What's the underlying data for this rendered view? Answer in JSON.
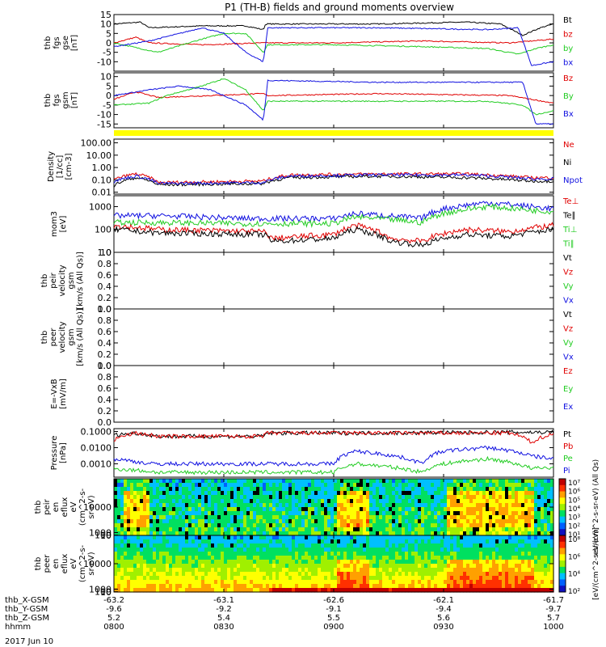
{
  "title": "P1 (TH-B) fields and ground moments overview",
  "date_label": "2017 Jun 10",
  "colors": {
    "black": "#000000",
    "red": "#e00000",
    "green": "#22cc22",
    "blue": "#1010e0",
    "yellow": "#ffff00"
  },
  "chart_data": [
    {
      "type": "line",
      "id": "fgs_gse",
      "ylabel": [
        "thb",
        "fgs",
        "gse",
        "[nT]"
      ],
      "ylim": [
        -15,
        15
      ],
      "ticks": [
        15,
        10,
        5,
        0,
        -5,
        -10
      ],
      "legend": [
        {
          "text": "Bt",
          "color": "black"
        },
        {
          "text": "bz",
          "color": "red"
        },
        {
          "text": "by",
          "color": "green"
        },
        {
          "text": "bx",
          "color": "blue"
        }
      ],
      "series": [
        {
          "color": "black",
          "x": [
            0,
            0.06,
            0.08,
            0.2,
            0.3,
            0.34,
            0.345,
            0.6,
            0.8,
            0.88,
            0.93,
            0.97,
            1
          ],
          "y": [
            10,
            11,
            8,
            9,
            9,
            7,
            10,
            10,
            11,
            10,
            4,
            8,
            10
          ]
        },
        {
          "color": "red",
          "x": [
            0,
            0.05,
            0.08,
            0.2,
            0.34,
            0.5,
            0.7,
            0.9,
            1
          ],
          "y": [
            0,
            3,
            0,
            -1,
            0,
            0,
            1,
            0,
            2
          ]
        },
        {
          "color": "green",
          "x": [
            0,
            0.06,
            0.1,
            0.2,
            0.25,
            0.3,
            0.34,
            0.35,
            0.5,
            0.7,
            0.85,
            0.92,
            0.96,
            1
          ],
          "y": [
            0,
            -3,
            -5,
            2,
            5,
            5,
            -5,
            -1,
            -1,
            -2,
            -3,
            -6,
            -3,
            -1
          ]
        },
        {
          "color": "blue",
          "x": [
            0,
            0.08,
            0.15,
            0.2,
            0.25,
            0.3,
            0.34,
            0.35,
            0.6,
            0.85,
            0.92,
            0.95,
            1
          ],
          "y": [
            -2,
            1,
            5,
            8,
            5,
            -5,
            -10,
            8,
            8,
            7,
            8,
            -12,
            -10
          ]
        }
      ]
    },
    {
      "type": "line",
      "id": "fgs_gsm",
      "ylabel": [
        "thb",
        "fgs",
        "gsm",
        "[nT]"
      ],
      "ylim": [
        -17,
        12
      ],
      "ticks": [
        10,
        5,
        0,
        -5,
        -10,
        -15
      ],
      "legend": [
        {
          "text": "Bz",
          "color": "red"
        },
        {
          "text": "By",
          "color": "green"
        },
        {
          "text": "Bx",
          "color": "blue"
        }
      ],
      "series": [
        {
          "color": "red",
          "x": [
            0,
            0.05,
            0.1,
            0.34,
            0.35,
            0.6,
            0.9,
            1
          ],
          "y": [
            -2,
            2,
            -1,
            1,
            0,
            1,
            0,
            -4
          ]
        },
        {
          "color": "green",
          "x": [
            0,
            0.08,
            0.12,
            0.2,
            0.25,
            0.3,
            0.34,
            0.35,
            0.6,
            0.85,
            0.93,
            0.96,
            1
          ],
          "y": [
            -5,
            -4,
            0,
            5,
            9,
            3,
            -8,
            -3,
            -3,
            -3,
            -5,
            -10,
            -8
          ]
        },
        {
          "color": "blue",
          "x": [
            0,
            0.08,
            0.15,
            0.22,
            0.3,
            0.34,
            0.35,
            0.6,
            0.85,
            0.93,
            0.96,
            1
          ],
          "y": [
            0,
            3,
            5,
            3,
            -5,
            -13,
            8,
            7,
            7,
            7,
            -15,
            -15
          ]
        }
      ]
    },
    {
      "type": "line",
      "id": "density",
      "ylabel": [
        "Density",
        "[1/cc]",
        "[cm-3]"
      ],
      "log": true,
      "ylim": [
        0.007,
        200
      ],
      "ticklabels": [
        {
          "v": 100,
          "t": "100.00"
        },
        {
          "v": 10,
          "t": "10.00"
        },
        {
          "v": 1,
          "t": "1.00"
        },
        {
          "v": 0.1,
          "t": "0.10"
        },
        {
          "v": 0.01,
          "t": "0.01"
        }
      ],
      "legend": [
        {
          "text": "Ne",
          "color": "red"
        },
        {
          "text": "Ni",
          "color": "black"
        },
        {
          "text": "Npot",
          "color": "blue"
        }
      ],
      "series": [
        {
          "color": "red",
          "x": [
            0,
            0.05,
            0.1,
            0.34,
            0.4,
            0.6,
            0.8,
            0.95,
            1
          ],
          "y": [
            0.1,
            0.3,
            0.06,
            0.08,
            0.25,
            0.3,
            0.3,
            0.15,
            0.15
          ]
        },
        {
          "color": "black",
          "x": [
            0,
            0.05,
            0.1,
            0.34,
            0.4,
            0.6,
            0.8,
            0.95,
            1
          ],
          "y": [
            0.03,
            0.15,
            0.04,
            0.05,
            0.15,
            0.2,
            0.15,
            0.08,
            0.08
          ]
        },
        {
          "color": "blue",
          "x": [
            0,
            0.05,
            0.1,
            0.34,
            0.4,
            0.6,
            0.8,
            0.95,
            1
          ],
          "y": [
            0.07,
            0.2,
            0.05,
            0.06,
            0.2,
            0.25,
            0.25,
            0.12,
            0.12
          ]
        }
      ]
    },
    {
      "type": "line",
      "id": "moms",
      "ylabel": [
        "mom3",
        "[eV]"
      ],
      "log": true,
      "ylim": [
        10,
        3000
      ],
      "ticklabels": [
        {
          "v": 1000,
          "t": "1000"
        },
        {
          "v": 100,
          "t": "100"
        },
        {
          "v": 10,
          "t": "10"
        }
      ],
      "legend": [
        {
          "text": "Te⊥",
          "color": "red"
        },
        {
          "text": "Te∥",
          "color": "black"
        },
        {
          "text": "Ti⊥",
          "color": "green"
        },
        {
          "text": "Ti∥",
          "color": "green"
        }
      ],
      "series": [
        {
          "color": "blue",
          "x": [
            0,
            0.1,
            0.3,
            0.5,
            0.55,
            0.7,
            0.75,
            0.85,
            0.95,
            1
          ],
          "y": [
            400,
            400,
            300,
            300,
            500,
            300,
            800,
            1500,
            1000,
            800
          ]
        },
        {
          "color": "green",
          "x": [
            0,
            0.1,
            0.3,
            0.5,
            0.55,
            0.7,
            0.75,
            0.85,
            0.95,
            1
          ],
          "y": [
            200,
            200,
            180,
            180,
            350,
            200,
            500,
            1000,
            700,
            600
          ]
        },
        {
          "color": "red",
          "x": [
            0,
            0.1,
            0.34,
            0.36,
            0.5,
            0.55,
            0.63,
            0.7,
            0.8,
            0.9,
            1
          ],
          "y": [
            150,
            100,
            80,
            40,
            60,
            150,
            40,
            30,
            100,
            80,
            150
          ]
        },
        {
          "color": "black",
          "x": [
            0,
            0.1,
            0.34,
            0.36,
            0.5,
            0.55,
            0.63,
            0.7,
            0.8,
            0.9,
            1
          ],
          "y": [
            100,
            70,
            60,
            30,
            40,
            100,
            30,
            20,
            60,
            50,
            100
          ]
        }
      ]
    },
    {
      "type": "line",
      "id": "peir_vel",
      "ylabel": [
        "thb",
        "peir",
        "velocity",
        "gsm",
        "[km/s (All Qs)]"
      ],
      "ylim": [
        0,
        1
      ],
      "ticklabels": [
        {
          "v": 1,
          "t": "1.0"
        },
        {
          "v": 0.8,
          "t": "0.8"
        },
        {
          "v": 0.6,
          "t": "0.6"
        },
        {
          "v": 0.4,
          "t": "0.4"
        },
        {
          "v": 0.2,
          "t": "0.2"
        },
        {
          "v": 0,
          "t": "0.0"
        }
      ],
      "legend": [
        {
          "text": "Vt",
          "color": "black"
        },
        {
          "text": "Vz",
          "color": "red"
        },
        {
          "text": "Vy",
          "color": "green"
        },
        {
          "text": "Vx",
          "color": "blue"
        }
      ],
      "series": []
    },
    {
      "type": "line",
      "id": "peer_vel",
      "ylabel": [
        "thb",
        "peer",
        "velocity",
        "gsm",
        "[km/s (All Qs)]"
      ],
      "ylim": [
        0,
        1
      ],
      "ticklabels": [
        {
          "v": 1,
          "t": "1.0"
        },
        {
          "v": 0.8,
          "t": "0.8"
        },
        {
          "v": 0.6,
          "t": "0.6"
        },
        {
          "v": 0.4,
          "t": "0.4"
        },
        {
          "v": 0.2,
          "t": "0.2"
        },
        {
          "v": 0,
          "t": "0.0"
        }
      ],
      "legend": [
        {
          "text": "Vt",
          "color": "black"
        },
        {
          "text": "Vz",
          "color": "red"
        },
        {
          "text": "Vy",
          "color": "green"
        },
        {
          "text": "Vx",
          "color": "blue"
        }
      ],
      "series": []
    },
    {
      "type": "line",
      "id": "efield",
      "ylabel": [
        "E=-VxB",
        "[mV/m]"
      ],
      "ylim": [
        0,
        1
      ],
      "ticklabels": [
        {
          "v": 1,
          "t": "1.0"
        },
        {
          "v": 0.8,
          "t": "0.8"
        },
        {
          "v": 0.6,
          "t": "0.6"
        },
        {
          "v": 0.4,
          "t": "0.4"
        },
        {
          "v": 0.2,
          "t": "0.2"
        },
        {
          "v": 0,
          "t": "0.0"
        }
      ],
      "legend": [
        {
          "text": "Ez",
          "color": "red"
        },
        {
          "text": "Ey",
          "color": "green"
        },
        {
          "text": "Ex",
          "color": "blue"
        }
      ],
      "series": []
    },
    {
      "type": "line",
      "id": "pressure",
      "ylabel": [
        "Pressure",
        "[nPa]"
      ],
      "log": true,
      "ylim": [
        0.00015,
        0.15
      ],
      "ticklabels": [
        {
          "v": 0.1,
          "t": "0.1000"
        },
        {
          "v": 0.01,
          "t": "0.0100"
        },
        {
          "v": 0.001,
          "t": "0.0010"
        }
      ],
      "legend": [
        {
          "text": "Pt",
          "color": "black"
        },
        {
          "text": "Pb",
          "color": "red"
        },
        {
          "text": "Pe",
          "color": "green"
        },
        {
          "text": "Pi",
          "color": "blue"
        }
      ],
      "series": [
        {
          "color": "black",
          "x": [
            0,
            0.05,
            0.1,
            0.34,
            0.35,
            0.6,
            0.9,
            1
          ],
          "y": [
            0.06,
            0.08,
            0.05,
            0.05,
            0.08,
            0.08,
            0.09,
            0.09
          ]
        },
        {
          "color": "red",
          "x": [
            0,
            0.05,
            0.1,
            0.34,
            0.35,
            0.6,
            0.9,
            0.95,
            1
          ],
          "y": [
            0.03,
            0.08,
            0.05,
            0.05,
            0.08,
            0.08,
            0.08,
            0.02,
            0.07
          ]
        },
        {
          "color": "blue",
          "x": [
            0,
            0.08,
            0.1,
            0.5,
            0.55,
            0.7,
            0.75,
            0.85,
            0.95,
            1
          ],
          "y": [
            0.002,
            0.001,
            0.001,
            0.001,
            0.006,
            0.001,
            0.006,
            0.01,
            0.003,
            0.002
          ]
        },
        {
          "color": "green",
          "x": [
            0,
            0.1,
            0.5,
            0.55,
            0.7,
            0.75,
            0.85,
            0.95,
            1
          ],
          "y": [
            0.0005,
            0.0003,
            0.0003,
            0.001,
            0.0003,
            0.001,
            0.002,
            0.0005,
            0.0006
          ]
        }
      ]
    },
    {
      "type": "heatmap",
      "id": "peir_en",
      "ylabel": [
        "thb",
        "peir",
        "en",
        "eflux",
        "eV",
        "(cm^2-s-",
        "sr-eV)"
      ],
      "ticklabels": [
        {
          "v": 10000,
          "t": "10000"
        },
        {
          "v": 1000,
          "t": "1000"
        },
        {
          "v": 100,
          "t": "100"
        },
        {
          "v": 10,
          "t": "10"
        }
      ],
      "ylim": [
        5,
        20000
      ]
    },
    {
      "type": "heatmap",
      "id": "peer_en",
      "ylabel": [
        "thb",
        "peer",
        "en",
        "eflux",
        "eV",
        "(cm^2-s-",
        "sr-eV)"
      ],
      "ticklabels": [
        {
          "v": 10000,
          "t": "10000"
        },
        {
          "v": 1000,
          "t": "1000"
        },
        {
          "v": 100,
          "t": "100"
        },
        {
          "v": 10,
          "t": "10"
        }
      ],
      "ylim": [
        5,
        20000
      ]
    }
  ],
  "colorbar_upper": {
    "labels": [
      "10⁷",
      "10⁶",
      "10⁵",
      "10⁴",
      "10³",
      "10²",
      "10¹"
    ],
    "title": "eV/(cm^2-s-sr-eV) (All Qs)"
  },
  "colorbar_lower": {
    "labels": [
      "10⁸",
      "10⁶",
      "10⁴",
      "10²"
    ],
    "title": "[eV/(cm^2-s-sr-eV)]"
  },
  "xaxis": {
    "rows": [
      {
        "label": "thb_X-GSM",
        "values": [
          "-63.2",
          "-63.1",
          "-62.6",
          "-62.1",
          "-61.7"
        ]
      },
      {
        "label": "thb_Y-GSM",
        "values": [
          "-9.6",
          "-9.2",
          "-9.1",
          "-9.4",
          "-9.7"
        ]
      },
      {
        "label": "thb_Z-GSM",
        "values": [
          "5.2",
          "5.4",
          "5.5",
          "5.6",
          "5.7"
        ]
      },
      {
        "label": "hhmm",
        "values": [
          "0800",
          "0830",
          "0900",
          "0930",
          "1000"
        ]
      }
    ]
  }
}
